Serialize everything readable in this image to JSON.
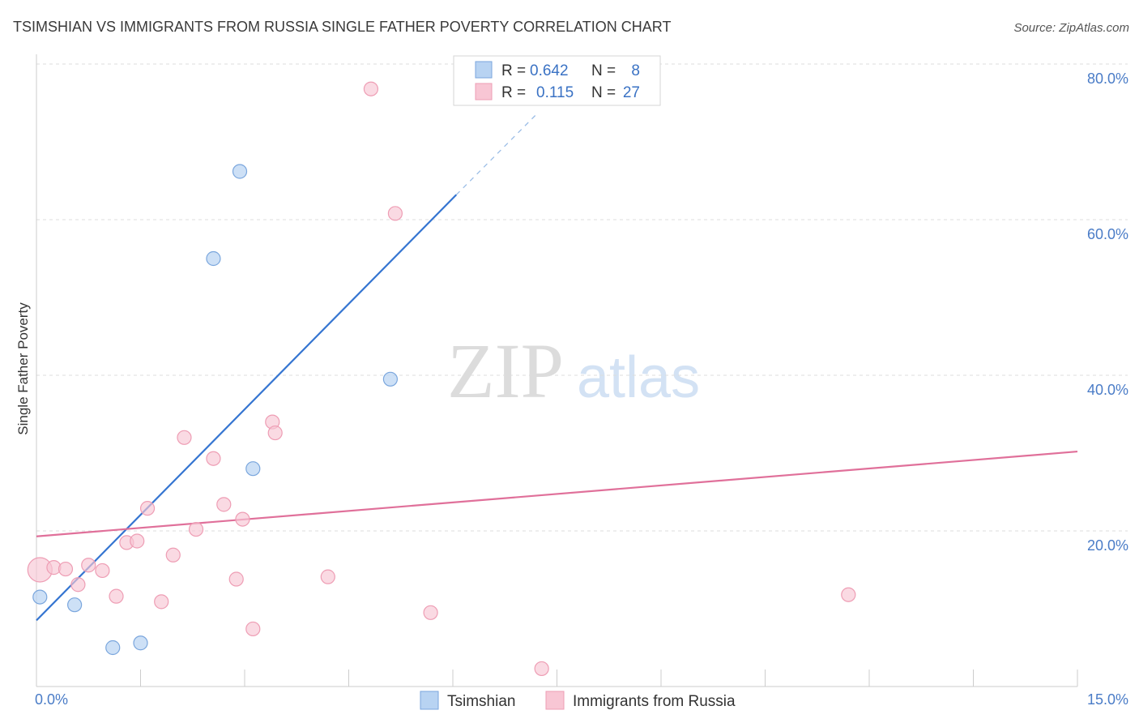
{
  "header": {
    "title": "TSIMSHIAN VS IMMIGRANTS FROM RUSSIA SINGLE FATHER POVERTY CORRELATION CHART",
    "source": "Source: ZipAtlas.com"
  },
  "watermark": {
    "zip": "ZIP",
    "atlas": "atlas"
  },
  "colors": {
    "tsimshian_fill": "#b8d3f2",
    "tsimshian_stroke": "#7aa6dd",
    "tsimshian_line": "#3575d1",
    "russia_fill": "#f8c6d4",
    "russia_stroke": "#ee9db4",
    "russia_line": "#e0709a",
    "grid": "#dddddd",
    "axis_text": "#4a7cc7"
  },
  "legend": {
    "rows": [
      {
        "r_label": "R =",
        "r_value": "0.642",
        "n_label": "N =",
        "n_value": "8"
      },
      {
        "r_label": "R =",
        "r_value": "0.115",
        "n_label": "N =",
        "n_value": "27"
      }
    ]
  },
  "chart_data": {
    "type": "scatter",
    "title": "TSIMSHIAN VS IMMIGRANTS FROM RUSSIA SINGLE FATHER POVERTY CORRELATION CHART",
    "xlabel": "",
    "ylabel": "Single Father Poverty",
    "xlim": [
      0,
      15
    ],
    "ylim": [
      0,
      80
    ],
    "x_tick_labels": [
      "0.0%",
      "15.0%"
    ],
    "y_ticks": [
      20,
      40,
      60,
      80
    ],
    "y_tick_labels": [
      "20.0%",
      "40.0%",
      "60.0%",
      "80.0%"
    ],
    "grid": true,
    "legend_placement": "top-center",
    "series": [
      {
        "name": "Tsimshian",
        "points": [
          [
            0.05,
            11.5
          ],
          [
            0.55,
            10.5
          ],
          [
            1.1,
            5.0
          ],
          [
            1.5,
            5.6
          ],
          [
            2.55,
            55.0
          ],
          [
            2.93,
            66.2
          ],
          [
            3.12,
            28.0
          ],
          [
            5.1,
            39.5
          ]
        ],
        "trend": {
          "x": [
            0,
            6.05
          ],
          "y": [
            8.5,
            63.2
          ],
          "dashed_to": [
            7.2,
            73.5
          ]
        }
      },
      {
        "name": "Immigrants from Russia",
        "points": [
          [
            0.05,
            15.0
          ],
          [
            0.25,
            15.3
          ],
          [
            0.42,
            15.1
          ],
          [
            0.6,
            13.1
          ],
          [
            0.75,
            15.6
          ],
          [
            0.95,
            14.9
          ],
          [
            1.15,
            11.6
          ],
          [
            1.3,
            18.5
          ],
          [
            1.45,
            18.7
          ],
          [
            1.6,
            22.9
          ],
          [
            1.8,
            10.9
          ],
          [
            1.97,
            16.9
          ],
          [
            2.13,
            32.0
          ],
          [
            2.3,
            20.2
          ],
          [
            2.55,
            29.3
          ],
          [
            2.7,
            23.4
          ],
          [
            2.88,
            13.8
          ],
          [
            2.97,
            21.5
          ],
          [
            3.12,
            7.4
          ],
          [
            3.4,
            34.0
          ],
          [
            3.44,
            32.6
          ],
          [
            4.2,
            14.1
          ],
          [
            4.82,
            76.8
          ],
          [
            5.17,
            60.8
          ],
          [
            5.68,
            9.5
          ],
          [
            7.28,
            2.3
          ],
          [
            11.7,
            11.8
          ]
        ],
        "trend": {
          "x": [
            0,
            15
          ],
          "y": [
            19.3,
            30.2
          ]
        }
      }
    ]
  },
  "bottom_legend": {
    "items": [
      {
        "label": "Tsimshian"
      },
      {
        "label": "Immigrants from Russia"
      }
    ]
  }
}
